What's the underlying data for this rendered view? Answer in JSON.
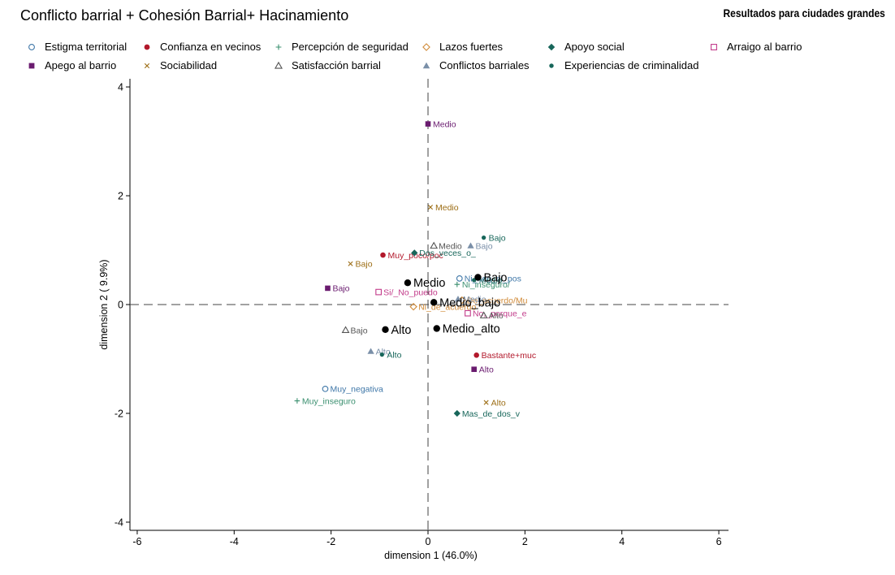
{
  "title": "Conflicto barrial + Cohesión Barrial+ Hacinamiento",
  "subtitle": "Resultados para ciudades grandes",
  "chart_data": {
    "type": "scatter",
    "xlabel": "dimension 1 (46.0%)",
    "ylabel": "dimension 2 ( 9.9%)",
    "xlim": [
      -6.15,
      6.2
    ],
    "ylim": [
      -4.15,
      4.15
    ],
    "xticks": [
      -6,
      -4,
      -2,
      0,
      2,
      4,
      6
    ],
    "yticks": [
      -4,
      -2,
      0,
      2,
      4
    ],
    "reference_lines": {
      "x": 0,
      "y": 0,
      "style": "dashed"
    },
    "grid": false,
    "legend_position": "top",
    "series": [
      {
        "name": "Estigma territorial",
        "marker": "circle-open",
        "color": "#3f77a8",
        "points": [
          {
            "x": -2.12,
            "y": -1.55,
            "label": "Muy_negativa"
          },
          {
            "x": 0.65,
            "y": 0.48,
            "label": "Ni_neg_ni_pos"
          }
        ]
      },
      {
        "name": "Confianza en vecinos",
        "marker": "circle",
        "color": "#b2182b",
        "points": [
          {
            "x": -0.93,
            "y": 0.91,
            "label": "Muy_poco/poc"
          },
          {
            "x": 1.0,
            "y": -0.93,
            "label": "Bastante+muc"
          }
        ]
      },
      {
        "name": "Percepción de seguridad",
        "marker": "plus",
        "color": "#3a8f6f",
        "points": [
          {
            "x": -2.7,
            "y": -1.77,
            "label": "Muy_inseguro"
          },
          {
            "x": 0.6,
            "y": 0.37,
            "label": "Ni_inseguro/"
          }
        ]
      },
      {
        "name": "Lazos fuertes",
        "marker": "diamond-open",
        "color": "#d08a38",
        "points": [
          {
            "x": -0.3,
            "y": -0.04,
            "label": "Ni_de_acuerdo"
          },
          {
            "x": 0.7,
            "y": 0.08,
            "label": "De_acuerdo/Mu"
          }
        ]
      },
      {
        "name": "Apoyo social",
        "marker": "diamond",
        "color": "#17665a",
        "points": [
          {
            "x": -0.28,
            "y": 0.95,
            "label": "Dos_veces_o_"
          },
          {
            "x": 0.6,
            "y": -2.0,
            "label": "Mas_de_dos_v"
          }
        ]
      },
      {
        "name": "Arraigo al barrio",
        "marker": "square-open",
        "color": "#c23b8a",
        "points": [
          {
            "x": -1.02,
            "y": 0.23,
            "label": "Si/_No_puedo"
          },
          {
            "x": 0.82,
            "y": -0.16,
            "label": "No,_porque_e"
          }
        ]
      },
      {
        "name": "Apego al barrio",
        "marker": "square",
        "color": "#6a1b6f",
        "points": [
          {
            "x": 0.0,
            "y": 3.32,
            "label": "Medio"
          },
          {
            "x": -2.07,
            "y": 0.3,
            "label": "Bajo"
          },
          {
            "x": 0.95,
            "y": -1.19,
            "label": "Alto"
          }
        ]
      },
      {
        "name": "Sociabilidad",
        "marker": "x",
        "color": "#9c6d14",
        "points": [
          {
            "x": 0.05,
            "y": 1.79,
            "label": "Medio"
          },
          {
            "x": -1.6,
            "y": 0.75,
            "label": "Bajo"
          },
          {
            "x": 1.2,
            "y": -1.8,
            "label": "Alto"
          }
        ]
      },
      {
        "name": "Satisfacción barrial",
        "marker": "triangle-open",
        "color": "#555555",
        "points": [
          {
            "x": 0.12,
            "y": 1.08,
            "label": "Medio"
          },
          {
            "x": -1.7,
            "y": -0.47,
            "label": "Bajo"
          },
          {
            "x": 1.15,
            "y": -0.2,
            "label": "Alto"
          }
        ]
      },
      {
        "name": "Conflictos barriales",
        "marker": "triangle",
        "color": "#7a8fa8",
        "points": [
          {
            "x": 0.88,
            "y": 1.08,
            "label": "Bajo"
          },
          {
            "x": -1.18,
            "y": -0.86,
            "label": "Alto"
          },
          {
            "x": 0.62,
            "y": 0.1,
            "label": "Medio"
          }
        ]
      },
      {
        "name": "Experiencias de criminalidad",
        "marker": "dot-small",
        "color": "#17665a",
        "points": [
          {
            "x": 1.15,
            "y": 1.23,
            "label": "Bajo"
          },
          {
            "x": -0.95,
            "y": -0.92,
            "label": "Alto"
          },
          {
            "x": 0.95,
            "y": 0.45,
            "label": "Medio"
          }
        ]
      }
    ],
    "supplementary": {
      "name": "Hacinamiento",
      "marker": "dot-large",
      "color": "#000000",
      "points": [
        {
          "x": -0.42,
          "y": 0.4,
          "label": "Medio"
        },
        {
          "x": 1.03,
          "y": 0.5,
          "label": "Bajo"
        },
        {
          "x": 0.12,
          "y": 0.04,
          "label": "Medio_bajo"
        },
        {
          "x": -0.88,
          "y": -0.46,
          "label": "Alto"
        },
        {
          "x": 0.18,
          "y": -0.44,
          "label": "Medio_alto"
        }
      ]
    }
  }
}
